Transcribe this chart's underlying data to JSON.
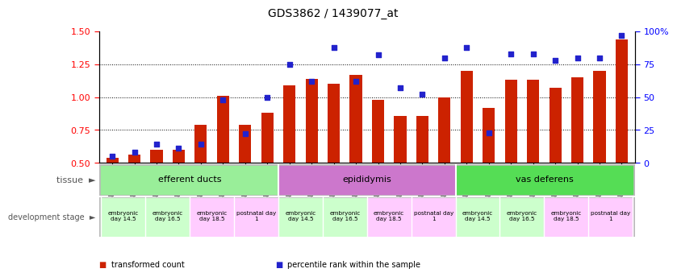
{
  "title": "GDS3862 / 1439077_at",
  "samples": [
    "GSM560923",
    "GSM560924",
    "GSM560925",
    "GSM560926",
    "GSM560927",
    "GSM560928",
    "GSM560929",
    "GSM560930",
    "GSM560931",
    "GSM560932",
    "GSM560933",
    "GSM560934",
    "GSM560935",
    "GSM560936",
    "GSM560937",
    "GSM560938",
    "GSM560939",
    "GSM560940",
    "GSM560941",
    "GSM560942",
    "GSM560943",
    "GSM560944",
    "GSM560945",
    "GSM560946"
  ],
  "red_values": [
    0.54,
    0.565,
    0.6,
    0.6,
    0.79,
    1.01,
    0.79,
    0.88,
    1.09,
    1.14,
    1.1,
    1.17,
    0.98,
    0.855,
    0.855,
    1.0,
    1.2,
    0.92,
    1.13,
    1.13,
    1.07,
    1.15,
    1.2,
    1.44
  ],
  "blue_values": [
    5,
    8,
    14,
    11,
    14,
    48,
    22,
    50,
    75,
    62,
    88,
    62,
    82,
    57,
    52,
    80,
    88,
    23,
    83,
    83,
    78,
    80,
    80,
    97
  ],
  "ylim_left": [
    0.5,
    1.5
  ],
  "ylim_right": [
    0,
    100
  ],
  "yticks_left": [
    0.5,
    0.75,
    1.0,
    1.25,
    1.5
  ],
  "yticks_right": [
    0,
    25,
    50,
    75,
    100
  ],
  "ytick_labels_right": [
    "0",
    "25",
    "50",
    "75",
    "100%"
  ],
  "bar_color": "#CC2200",
  "dot_color": "#2222CC",
  "tissue_groups": [
    {
      "label": "efferent ducts",
      "start": 0,
      "end": 8,
      "color": "#99EE99"
    },
    {
      "label": "epididymis",
      "start": 8,
      "end": 16,
      "color": "#CC77CC"
    },
    {
      "label": "vas deferens",
      "start": 16,
      "end": 24,
      "color": "#55DD55"
    }
  ],
  "dev_stages": [
    {
      "label": "embryonic\nday 14.5",
      "start": 0,
      "end": 2,
      "color": "#CCFFCC"
    },
    {
      "label": "embryonic\nday 16.5",
      "start": 2,
      "end": 4,
      "color": "#CCFFCC"
    },
    {
      "label": "embryonic\nday 18.5",
      "start": 4,
      "end": 6,
      "color": "#FFCCFF"
    },
    {
      "label": "postnatal day\n1",
      "start": 6,
      "end": 8,
      "color": "#FFCCFF"
    },
    {
      "label": "embryonic\nday 14.5",
      "start": 8,
      "end": 10,
      "color": "#CCFFCC"
    },
    {
      "label": "embryonic\nday 16.5",
      "start": 10,
      "end": 12,
      "color": "#CCFFCC"
    },
    {
      "label": "embryonic\nday 18.5",
      "start": 12,
      "end": 14,
      "color": "#FFCCFF"
    },
    {
      "label": "postnatal day\n1",
      "start": 14,
      "end": 16,
      "color": "#FFCCFF"
    },
    {
      "label": "embryonic\nday 14.5",
      "start": 16,
      "end": 18,
      "color": "#CCFFCC"
    },
    {
      "label": "embryonic\nday 16.5",
      "start": 18,
      "end": 20,
      "color": "#CCFFCC"
    },
    {
      "label": "embryonic\nday 18.5",
      "start": 20,
      "end": 22,
      "color": "#FFCCFF"
    },
    {
      "label": "postnatal day\n1",
      "start": 22,
      "end": 24,
      "color": "#FFCCFF"
    }
  ],
  "legend_items": [
    {
      "color": "#CC2200",
      "label": "transformed count"
    },
    {
      "color": "#2222CC",
      "label": "percentile rank within the sample"
    }
  ],
  "background_color": "#FFFFFF"
}
